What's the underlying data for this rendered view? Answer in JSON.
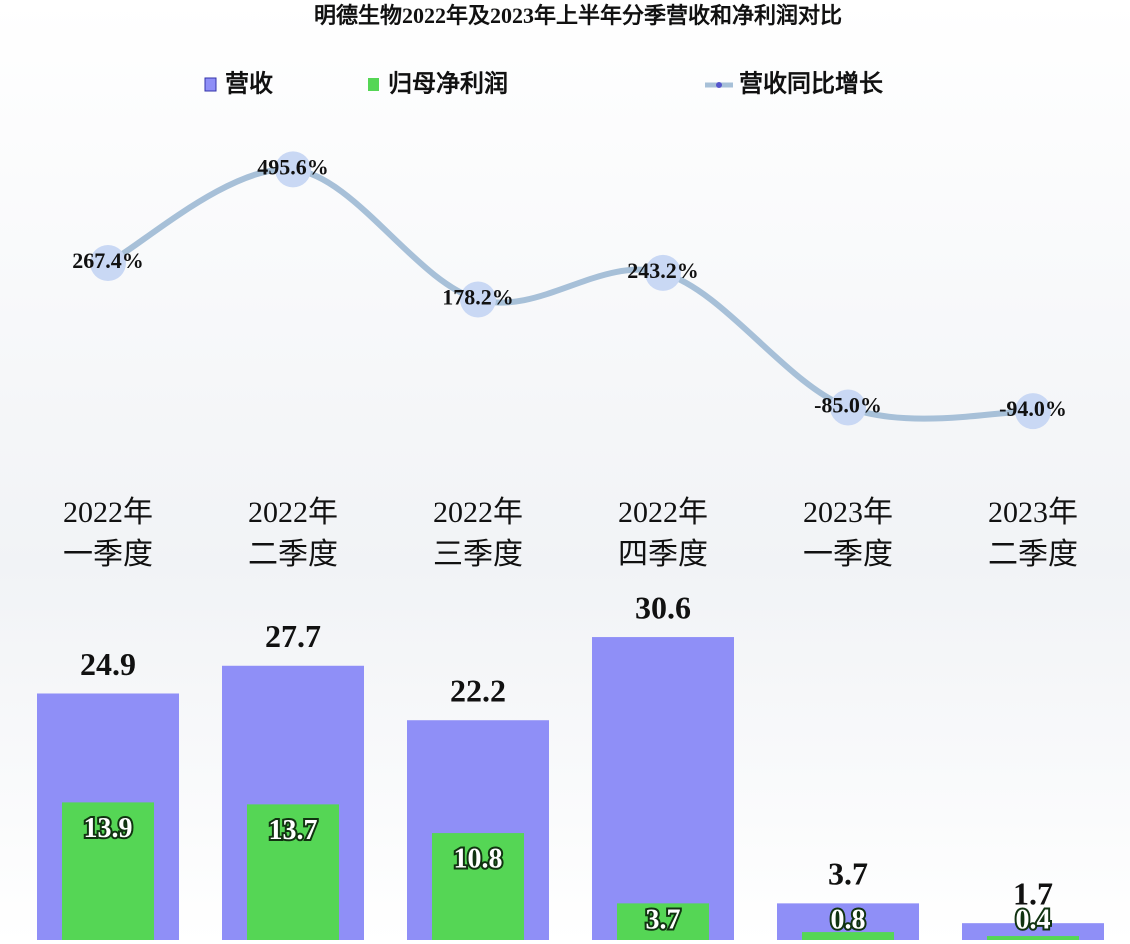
{
  "chart_data": {
    "type": "bar-line",
    "title": "明德生物2022年及2023年上半年分季营收和净利润对比",
    "categories": [
      "2022年\n一季度",
      "2022年\n二季度",
      "2022年\n三季度",
      "2022年\n四季度",
      "2023年\n一季度",
      "2023年\n二季度"
    ],
    "series": [
      {
        "name": "营收",
        "color": "#8f8ff7",
        "values": [
          24.9,
          27.7,
          22.2,
          30.6,
          3.7,
          1.7
        ]
      },
      {
        "name": "归母净利润",
        "color": "#55d655",
        "values": [
          13.9,
          13.7,
          10.8,
          3.7,
          0.8,
          0.4
        ]
      },
      {
        "name": "营收同比增长",
        "color": "#a7c0d8",
        "axis": "y2",
        "values": [
          267.4,
          495.6,
          178.2,
          243.2,
          -85.0,
          -94.0
        ],
        "value_labels": [
          "267.4%",
          "495.6%",
          "178.2%",
          "243.2%",
          "-85.0%",
          "-94.0%"
        ]
      }
    ]
  }
}
